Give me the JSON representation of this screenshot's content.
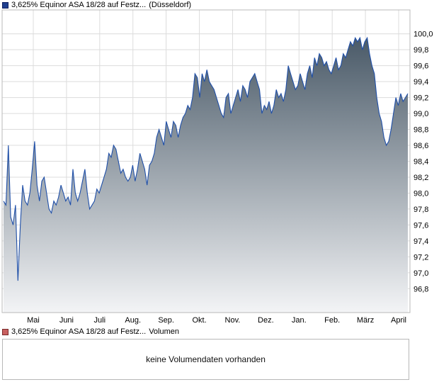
{
  "price_legend": {
    "name": "3,625% Equinor ASA 18/28 auf Festz...",
    "venue": "(Düsseldorf)",
    "color": "#1f3f8f"
  },
  "volume_legend": {
    "name": "3,625% Equinor ASA 18/28 auf Festz...",
    "suffix": "Volumen",
    "color": "#c86060"
  },
  "volume_panel": {
    "message": "keine Volumendaten vorhanden"
  },
  "chart_data": {
    "type": "area",
    "y_axis_position": "right",
    "ylim": [
      96.5,
      100.3
    ],
    "y_ticks": [
      "96,8",
      "97,0",
      "97,2",
      "97,4",
      "97,6",
      "97,8",
      "98,0",
      "98,2",
      "98,4",
      "98,6",
      "98,8",
      "99,0",
      "99,2",
      "99,4",
      "99,6",
      "99,8",
      "100,0"
    ],
    "x_ticks": [
      "Mai",
      "Juni",
      "Juli",
      "Aug.",
      "Sep.",
      "Okt.",
      "Nov.",
      "Dez.",
      "Jan.",
      "Feb.",
      "März",
      "April"
    ],
    "grid": true,
    "line_color": "#1f4fa8",
    "fill_top": "#4a5a68",
    "fill_bottom": "#f3f4f6",
    "series": [
      {
        "values": [
          97.9,
          97.85,
          98.6,
          97.7,
          97.6,
          97.85,
          96.9,
          97.6,
          98.1,
          97.9,
          97.85,
          98.0,
          98.3,
          98.65,
          98.1,
          97.9,
          98.15,
          98.2,
          98.0,
          97.8,
          97.75,
          97.9,
          97.85,
          97.95,
          98.1,
          98.0,
          97.9,
          97.95,
          97.85,
          98.3,
          98.0,
          97.9,
          98.0,
          98.15,
          98.3,
          98.0,
          97.8,
          97.85,
          97.9,
          98.05,
          98.0,
          98.1,
          98.2,
          98.3,
          98.5,
          98.45,
          98.6,
          98.55,
          98.4,
          98.25,
          98.3,
          98.2,
          98.15,
          98.2,
          98.35,
          98.15,
          98.3,
          98.5,
          98.4,
          98.3,
          98.1,
          98.35,
          98.4,
          98.5,
          98.7,
          98.8,
          98.7,
          98.6,
          98.9,
          98.8,
          98.7,
          98.9,
          98.85,
          98.7,
          98.85,
          98.95,
          99.0,
          99.1,
          99.05,
          99.2,
          99.5,
          99.45,
          99.2,
          99.5,
          99.4,
          99.55,
          99.4,
          99.35,
          99.3,
          99.2,
          99.1,
          99.0,
          98.95,
          99.2,
          99.25,
          99.0,
          99.1,
          99.2,
          99.3,
          99.15,
          99.35,
          99.3,
          99.2,
          99.4,
          99.45,
          99.5,
          99.4,
          99.3,
          99.0,
          99.1,
          99.05,
          99.15,
          99.0,
          99.1,
          99.3,
          99.2,
          99.25,
          99.15,
          99.3,
          99.6,
          99.5,
          99.4,
          99.3,
          99.35,
          99.5,
          99.4,
          99.3,
          99.5,
          99.6,
          99.45,
          99.7,
          99.6,
          99.75,
          99.7,
          99.6,
          99.65,
          99.55,
          99.5,
          99.6,
          99.7,
          99.55,
          99.6,
          99.75,
          99.7,
          99.8,
          99.9,
          99.85,
          99.95,
          99.9,
          99.95,
          99.8,
          99.9,
          99.95,
          99.75,
          99.6,
          99.5,
          99.2,
          99.0,
          98.9,
          98.7,
          98.6,
          98.65,
          98.8,
          99.0,
          99.2,
          99.1,
          99.25,
          99.15,
          99.2,
          99.25
        ]
      }
    ]
  }
}
